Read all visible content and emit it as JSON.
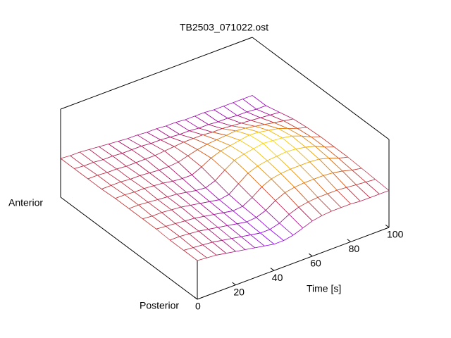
{
  "chart_data": {
    "type": "surface",
    "title": "TB2503_071022.ost",
    "xlabel": "Time [s]",
    "y_ends": [
      "Posterior",
      "Anterior"
    ],
    "xlim": [
      0,
      100
    ],
    "xticks": [
      0,
      20,
      40,
      60,
      80,
      100
    ],
    "zlim": [
      0,
      1
    ],
    "colors": [
      "#9400ff",
      "#b0105a",
      "#e07000",
      "#ffe000"
    ],
    "x": [
      0,
      5,
      10,
      15,
      20,
      25,
      30,
      35,
      40,
      45,
      50,
      55,
      60,
      65,
      70,
      75,
      80,
      85,
      90,
      95,
      100
    ],
    "z": [
      [
        0.44,
        0.43,
        0.42,
        0.4,
        0.38,
        0.36,
        0.34,
        0.32,
        0.3,
        0.3,
        0.32,
        0.36,
        0.4,
        0.42,
        0.43,
        0.43,
        0.43,
        0.42,
        0.42,
        0.42,
        0.42
      ],
      [
        0.44,
        0.43,
        0.42,
        0.41,
        0.39,
        0.37,
        0.35,
        0.33,
        0.31,
        0.31,
        0.34,
        0.4,
        0.44,
        0.46,
        0.47,
        0.47,
        0.47,
        0.46,
        0.45,
        0.44,
        0.43
      ],
      [
        0.44,
        0.44,
        0.43,
        0.42,
        0.4,
        0.38,
        0.36,
        0.34,
        0.32,
        0.33,
        0.37,
        0.44,
        0.49,
        0.51,
        0.52,
        0.52,
        0.52,
        0.51,
        0.49,
        0.46,
        0.44
      ],
      [
        0.45,
        0.44,
        0.43,
        0.42,
        0.41,
        0.39,
        0.37,
        0.35,
        0.33,
        0.34,
        0.4,
        0.48,
        0.53,
        0.55,
        0.56,
        0.56,
        0.56,
        0.55,
        0.52,
        0.48,
        0.45
      ],
      [
        0.45,
        0.44,
        0.44,
        0.43,
        0.42,
        0.4,
        0.38,
        0.36,
        0.34,
        0.36,
        0.44,
        0.52,
        0.56,
        0.58,
        0.59,
        0.6,
        0.59,
        0.57,
        0.54,
        0.49,
        0.45
      ],
      [
        0.45,
        0.45,
        0.44,
        0.43,
        0.42,
        0.41,
        0.39,
        0.37,
        0.36,
        0.4,
        0.48,
        0.55,
        0.58,
        0.6,
        0.62,
        0.61,
        0.6,
        0.58,
        0.54,
        0.49,
        0.45
      ],
      [
        0.45,
        0.45,
        0.44,
        0.44,
        0.43,
        0.42,
        0.4,
        0.39,
        0.39,
        0.44,
        0.5,
        0.54,
        0.56,
        0.58,
        0.6,
        0.59,
        0.57,
        0.55,
        0.51,
        0.47,
        0.44
      ],
      [
        0.44,
        0.44,
        0.44,
        0.43,
        0.43,
        0.42,
        0.41,
        0.41,
        0.42,
        0.45,
        0.48,
        0.5,
        0.51,
        0.52,
        0.53,
        0.52,
        0.5,
        0.48,
        0.46,
        0.44,
        0.42
      ],
      [
        0.44,
        0.44,
        0.43,
        0.43,
        0.42,
        0.42,
        0.42,
        0.42,
        0.43,
        0.44,
        0.45,
        0.45,
        0.45,
        0.44,
        0.44,
        0.43,
        0.42,
        0.41,
        0.4,
        0.39,
        0.38
      ],
      [
        0.44,
        0.43,
        0.43,
        0.42,
        0.42,
        0.41,
        0.41,
        0.41,
        0.4,
        0.4,
        0.39,
        0.38,
        0.38,
        0.37,
        0.37,
        0.36,
        0.36,
        0.35,
        0.35,
        0.34,
        0.34
      ],
      [
        0.44,
        0.43,
        0.43,
        0.42,
        0.41,
        0.4,
        0.39,
        0.38,
        0.38,
        0.37,
        0.37,
        0.36,
        0.36,
        0.35,
        0.35,
        0.35,
        0.34,
        0.34,
        0.34,
        0.34,
        0.34
      ]
    ]
  }
}
